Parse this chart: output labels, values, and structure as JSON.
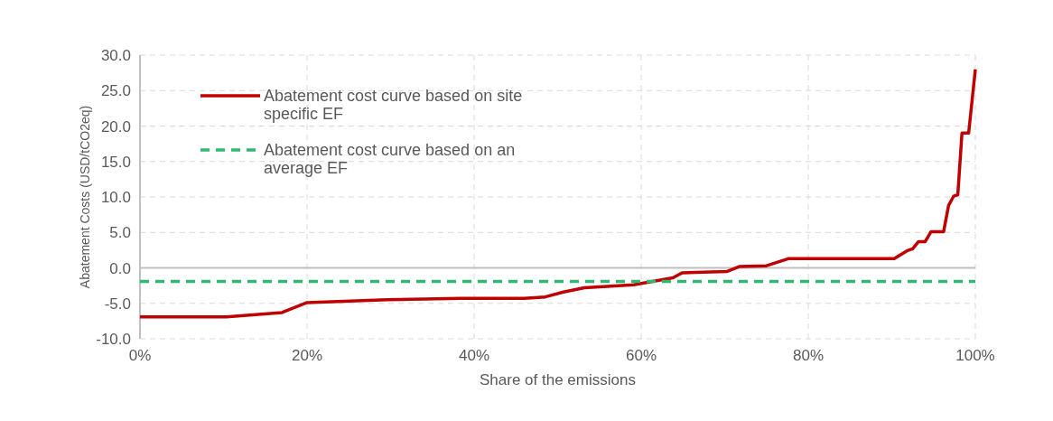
{
  "chart_data": {
    "type": "line",
    "xlabel": "Share of the emissions",
    "ylabel": "Abatement Costs (USD/tCO2eq)",
    "xlim": [
      0,
      100
    ],
    "ylim": [
      -10,
      30
    ],
    "xticks": [
      {
        "value": 0,
        "label": "0%"
      },
      {
        "value": 20,
        "label": "20%"
      },
      {
        "value": 40,
        "label": "40%"
      },
      {
        "value": 60,
        "label": "60%"
      },
      {
        "value": 80,
        "label": "80%"
      },
      {
        "value": 100,
        "label": "100%"
      }
    ],
    "yticks": [
      {
        "value": -10,
        "label": "-10.0"
      },
      {
        "value": -5,
        "label": "-5.0"
      },
      {
        "value": 0,
        "label": "0.0"
      },
      {
        "value": 5,
        "label": "5.0"
      },
      {
        "value": 10,
        "label": "10.0"
      },
      {
        "value": 15,
        "label": "15.0"
      },
      {
        "value": 20,
        "label": "20.0"
      },
      {
        "value": 25,
        "label": "25.0"
      },
      {
        "value": 30,
        "label": "30.0"
      }
    ],
    "grid": true,
    "legend": "top left",
    "marker": "none",
    "ref_lines": [
      {
        "axis": "y",
        "value": 0,
        "color": "#bfbfbf",
        "line_style": "solid"
      }
    ],
    "series": [
      {
        "name": "Abatement cost curve based on site specific EF",
        "color": "#c00000",
        "line_style": "solid",
        "x": [
          0,
          10.4,
          17,
          20,
          29.6,
          38.4,
          46,
          48.5,
          50.7,
          53.2,
          59.1,
          63.8,
          64.9,
          70.3,
          71.8,
          75,
          77.6,
          90.3,
          91.8,
          92.5,
          93.2,
          94,
          94.7,
          96.2,
          96.8,
          97.4,
          97.9,
          98.4,
          99.2,
          100
        ],
        "values": [
          -6.9,
          -6.9,
          -6.3,
          -4.9,
          -4.5,
          -4.3,
          -4.3,
          -4.1,
          -3.4,
          -2.8,
          -2.4,
          -1.4,
          -0.7,
          -0.5,
          0.2,
          0.3,
          1.3,
          1.3,
          2.4,
          2.7,
          3.7,
          3.7,
          5.1,
          5.1,
          8.8,
          10.1,
          10.3,
          19,
          19,
          28
        ]
      },
      {
        "name": "Abatement cost curve based on an average EF",
        "color": "#2eb872",
        "line_style": "dashed",
        "x": [
          0,
          100
        ],
        "values": [
          -1.9,
          -1.9
        ]
      }
    ]
  }
}
